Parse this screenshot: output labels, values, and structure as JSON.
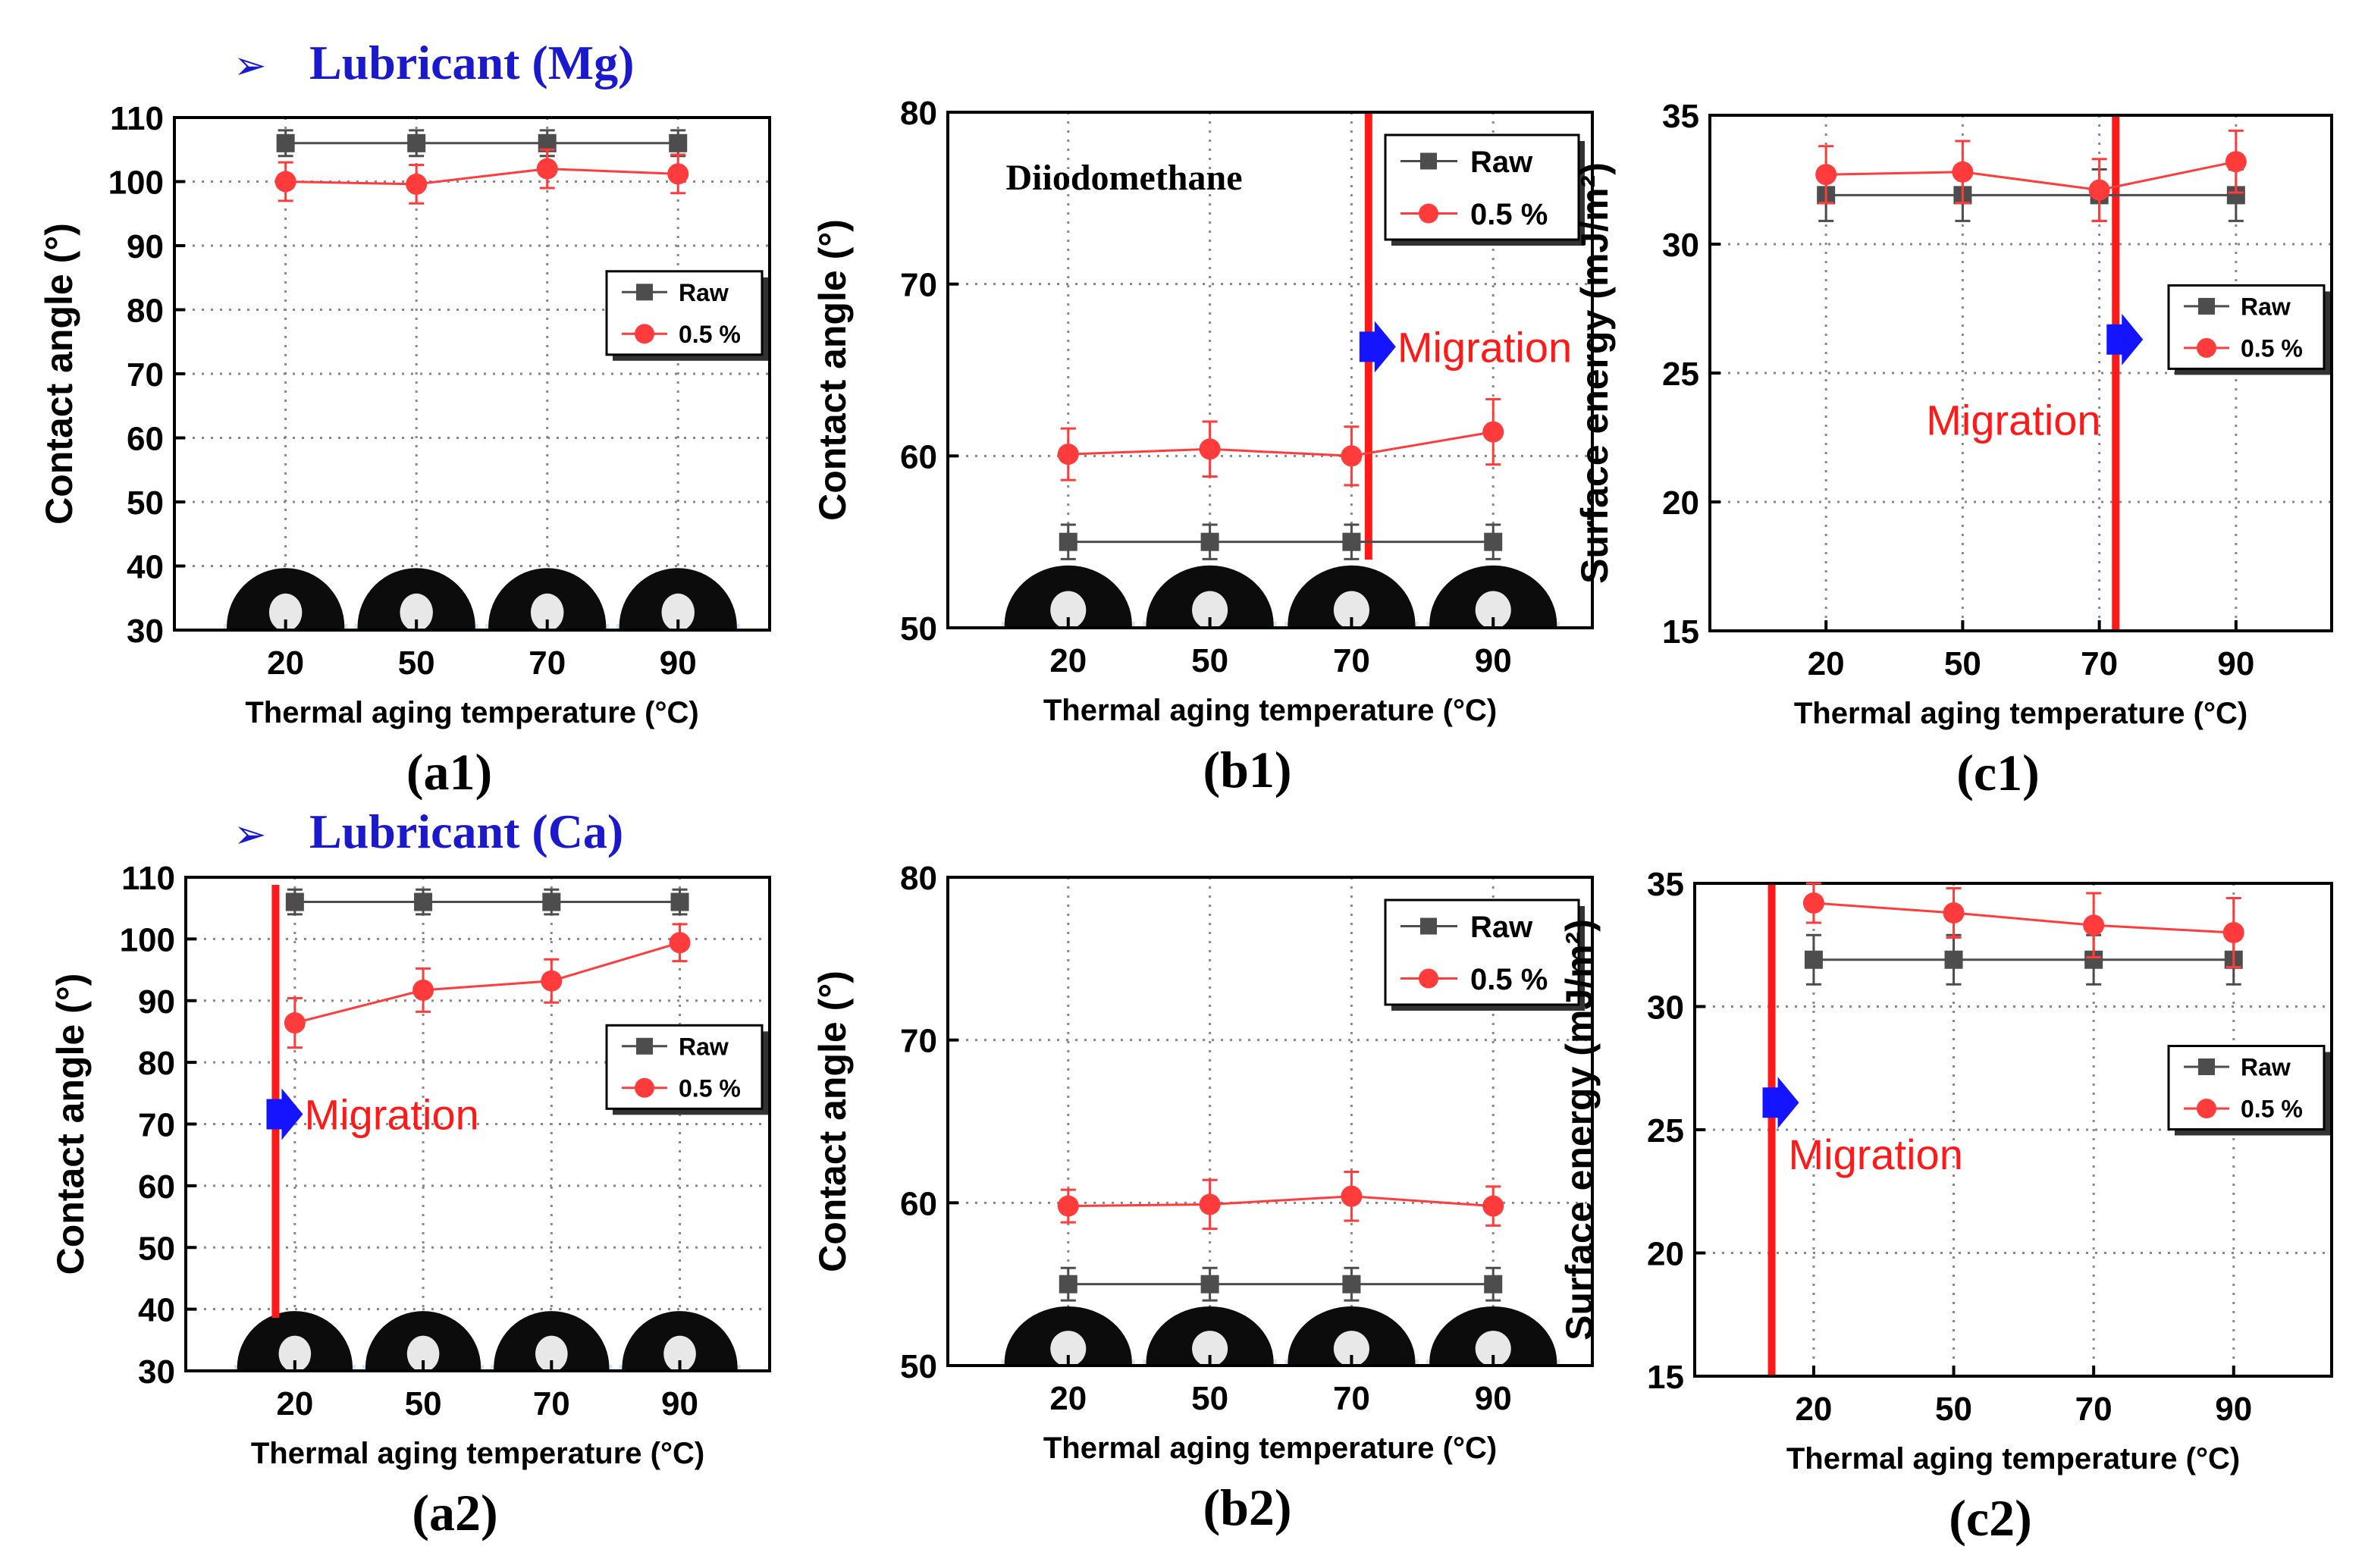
{
  "figure": {
    "colors": {
      "raw": "#4d4d4d",
      "treated": "#ff3b3b",
      "migration": "#ff1a1a",
      "arrow": "#1414ff",
      "header": "#1a1acc",
      "grid": "#888888"
    },
    "section_headers": [
      {
        "marker": "➢",
        "text": "Lubricant (Mg)"
      },
      {
        "marker": "➢",
        "text": "Lubricant (Ca)"
      }
    ]
  },
  "chart_data": [
    {
      "id": "a1",
      "panel_label": "(a1)",
      "type": "line",
      "xlabel": "Thermal aging temperature",
      "xlabel_unit": "(°C)",
      "ylabel": "Contact angle (°)",
      "ylim": [
        30,
        110
      ],
      "yticks": [
        30,
        40,
        50,
        60,
        70,
        80,
        90,
        100,
        110
      ],
      "categories": [
        "20",
        "50",
        "70",
        "90"
      ],
      "grid": true,
      "legend_position": "right-middle",
      "droplets": true,
      "series": [
        {
          "name": "Raw",
          "marker": "square",
          "values": [
            106,
            106,
            106,
            106
          ],
          "errors": [
            2,
            2,
            2,
            2
          ]
        },
        {
          "name": "0.5 %",
          "marker": "circle",
          "values": [
            100,
            99.6,
            102,
            101.2
          ],
          "errors": [
            3,
            3,
            3,
            3
          ]
        }
      ]
    },
    {
      "id": "b1",
      "panel_label": "(b1)",
      "type": "line",
      "xlabel": "Thermal aging temperature",
      "xlabel_unit": "(°C)",
      "ylabel": "Contact angle (°)",
      "ylim": [
        50,
        80
      ],
      "yticks": [
        50,
        60,
        70,
        80
      ],
      "categories": [
        "20",
        "50",
        "70",
        "90"
      ],
      "grid": true,
      "legend_position": "top-right",
      "droplets": true,
      "annotation": "Diiodomethane",
      "migration": {
        "text": "Migration",
        "x": 2.12
      },
      "series": [
        {
          "name": "Raw",
          "marker": "square",
          "values": [
            55,
            55,
            55,
            55
          ],
          "errors": [
            1,
            1,
            1,
            1
          ]
        },
        {
          "name": "0.5 %",
          "marker": "circle",
          "values": [
            60.1,
            60.4,
            60,
            61.4
          ],
          "errors": [
            1.5,
            1.6,
            1.7,
            1.9
          ]
        }
      ]
    },
    {
      "id": "c1",
      "panel_label": "(c1)",
      "type": "line",
      "xlabel": "Thermal aging temperature",
      "xlabel_unit": "(°C)",
      "ylabel": "Surface energy (mJ/m²)",
      "ylim": [
        15,
        35
      ],
      "yticks": [
        15,
        20,
        25,
        30,
        35
      ],
      "categories": [
        "20",
        "50",
        "70",
        "90"
      ],
      "grid": true,
      "legend_position": "right-middle",
      "droplets": false,
      "migration": {
        "text": "Migration",
        "x": 2.12
      },
      "series": [
        {
          "name": "Raw",
          "marker": "square",
          "values": [
            31.9,
            31.9,
            31.9,
            31.9
          ],
          "errors": [
            1,
            1,
            1,
            1
          ]
        },
        {
          "name": "0.5 %",
          "marker": "circle",
          "values": [
            32.7,
            32.8,
            32.1,
            33.2
          ],
          "errors": [
            1.1,
            1.2,
            1.2,
            1.2
          ]
        }
      ]
    },
    {
      "id": "a2",
      "panel_label": "(a2)",
      "type": "line",
      "xlabel": "Thermal aging temperature",
      "xlabel_unit": "(°C)",
      "ylabel": "Contact angle (°)",
      "ylim": [
        30,
        110
      ],
      "yticks": [
        30,
        40,
        50,
        60,
        70,
        80,
        90,
        100,
        110
      ],
      "categories": [
        "20",
        "50",
        "70",
        "90"
      ],
      "grid": true,
      "legend_position": "right-middle",
      "droplets": true,
      "migration": {
        "text": "Migration",
        "x": -0.15
      },
      "series": [
        {
          "name": "Raw",
          "marker": "square",
          "values": [
            106,
            106,
            106,
            106
          ],
          "errors": [
            2,
            2,
            2,
            2
          ]
        },
        {
          "name": "0.5 %",
          "marker": "circle",
          "values": [
            86.4,
            91.7,
            93.2,
            99.4
          ],
          "errors": [
            4,
            3.5,
            3.5,
            3
          ]
        }
      ]
    },
    {
      "id": "b2",
      "panel_label": "(b2)",
      "type": "line",
      "xlabel": "Thermal aging temperature",
      "xlabel_unit": "(°C)",
      "ylabel": "Contact angle (°)",
      "ylim": [
        50,
        80
      ],
      "yticks": [
        50,
        60,
        70,
        80
      ],
      "categories": [
        "20",
        "50",
        "70",
        "90"
      ],
      "grid": true,
      "legend_position": "top-right",
      "droplets": true,
      "series": [
        {
          "name": "Raw",
          "marker": "square",
          "values": [
            55,
            55,
            55,
            55
          ],
          "errors": [
            1,
            1,
            1,
            1
          ]
        },
        {
          "name": "0.5 %",
          "marker": "circle",
          "values": [
            59.8,
            59.9,
            60.4,
            59.8
          ],
          "errors": [
            1,
            1.5,
            1.5,
            1.2
          ]
        }
      ]
    },
    {
      "id": "c2",
      "panel_label": "(c2)",
      "type": "line",
      "xlabel": "Thermal aging temperature",
      "xlabel_unit": "(°C)",
      "ylabel": "Surface energy (mJ/m²)",
      "ylim": [
        15,
        35
      ],
      "yticks": [
        15,
        20,
        25,
        30,
        35
      ],
      "categories": [
        "20",
        "50",
        "70",
        "90"
      ],
      "grid": true,
      "legend_position": "right-middle",
      "droplets": false,
      "migration": {
        "text": "Migration",
        "x": -0.3
      },
      "series": [
        {
          "name": "Raw",
          "marker": "square",
          "values": [
            31.9,
            31.9,
            31.9,
            31.9
          ],
          "errors": [
            1,
            1,
            1,
            1
          ]
        },
        {
          "name": "0.5 %",
          "marker": "circle",
          "values": [
            34.2,
            33.8,
            33.3,
            33.0
          ],
          "errors": [
            0.8,
            1,
            1.3,
            1.4
          ]
        }
      ]
    }
  ]
}
